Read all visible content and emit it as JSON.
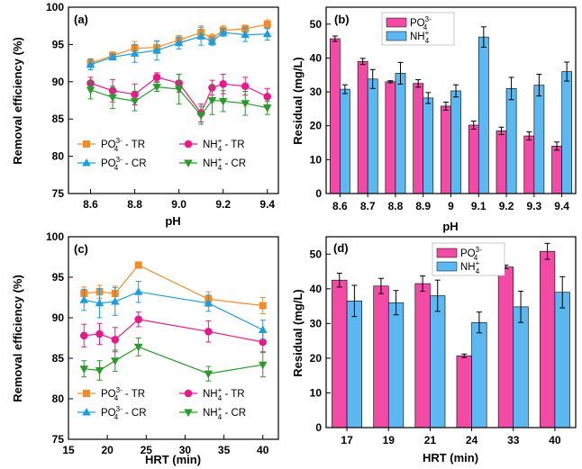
{
  "colors": {
    "po4": "#f28c28",
    "nh4": "#e8198b",
    "po4_cr": "#1a9ee0",
    "nh4_cr": "#2a9a2a",
    "bar_po4": "#f24aa5",
    "bar_nh4": "#5bb8f0"
  },
  "chart_data": [
    {
      "id": "a",
      "panel_label": "(a)",
      "type": "line",
      "xlabel": "pH",
      "ylabel": "Removal efficiency (%)",
      "xlim": [
        8.5,
        9.45
      ],
      "ylim": [
        75,
        100
      ],
      "xticks": [
        8.6,
        8.8,
        9.0,
        9.2,
        9.4
      ],
      "xtick_labels": [
        "8.6",
        "8.8",
        "9.0",
        "9.2",
        "9.4"
      ],
      "yticks": [
        75,
        80,
        85,
        90,
        95,
        100
      ],
      "x": [
        8.6,
        8.7,
        8.8,
        8.9,
        9.0,
        9.1,
        9.15,
        9.2,
        9.3,
        9.4
      ],
      "legend_position": "bottom-left",
      "series": [
        {
          "name": "PO43- - TR",
          "label_main": "PO",
          "label_sub": "4",
          "label_sup": "3-",
          "label_tail": " - TR",
          "color_key": "po4",
          "marker": "square",
          "values": [
            92.5,
            93.5,
            94.5,
            94.6,
            95.6,
            96.6,
            95.8,
            96.9,
            97.1,
            97.7
          ],
          "errors": [
            0.6,
            0.5,
            0.9,
            0.8,
            0.6,
            0.9,
            0.6,
            0.6,
            0.5,
            0.6
          ]
        },
        {
          "name": "NH4+ - TR",
          "label_main": "NH",
          "label_sub": "4",
          "label_sup": "+",
          "label_tail": " - TR",
          "color_key": "nh4",
          "marker": "circle",
          "values": [
            89.8,
            88.8,
            88.3,
            90.6,
            89.8,
            85.8,
            89.2,
            89.7,
            89.4,
            88.0
          ],
          "errors": [
            0.8,
            1.5,
            1.4,
            0.6,
            1.2,
            1.2,
            1.0,
            1.3,
            1.2,
            1.1
          ]
        },
        {
          "name": "PO43- - CR",
          "label_main": "PO",
          "label_sub": "4",
          "label_sup": "3-",
          "label_tail": " - CR",
          "color_key": "po4_cr",
          "marker": "triangle-up",
          "values": [
            92.3,
            93.3,
            93.8,
            94.2,
            95.2,
            96.1,
            95.4,
            96.6,
            96.3,
            96.4
          ],
          "errors": [
            0.7,
            0.4,
            1.2,
            1.3,
            0.8,
            1.2,
            0.5,
            0.5,
            0.9,
            0.8
          ]
        },
        {
          "name": "NH4+ - CR",
          "label_main": "NH",
          "label_sub": "4",
          "label_sup": "+",
          "label_tail": " - CR",
          "color_key": "nh4_cr",
          "marker": "triangle-down",
          "values": [
            88.9,
            87.9,
            87.4,
            89.3,
            89.0,
            85.5,
            87.5,
            87.4,
            87.1,
            86.5
          ],
          "errors": [
            1.2,
            1.5,
            1.3,
            0.6,
            2.0,
            1.2,
            1.9,
            1.4,
            1.6,
            0.9
          ]
        }
      ]
    },
    {
      "id": "b",
      "panel_label": "(b)",
      "type": "bar",
      "xlabel": "pH",
      "ylabel": "Residual (mg/L)",
      "ylim": [
        0,
        55
      ],
      "yticks": [
        0,
        10,
        20,
        30,
        40,
        50
      ],
      "categories": [
        "8.6",
        "8.7",
        "8.8",
        "8.9",
        "9",
        "9.1",
        "9.2",
        "9.3",
        "9.4"
      ],
      "legend_position": "top-center",
      "series": [
        {
          "name": "PO43-",
          "label_main": "PO",
          "label_sub": "4",
          "label_sup": "3-",
          "color_key": "bar_po4",
          "values": [
            45.7,
            39.0,
            33.0,
            32.5,
            25.8,
            20.2,
            18.5,
            17.0,
            14.0
          ],
          "errors": [
            0.8,
            0.9,
            0.3,
            1.1,
            1.2,
            1.2,
            1.1,
            1.2,
            1.2
          ]
        },
        {
          "name": "NH4+",
          "label_main": "NH",
          "label_sub": "4",
          "label_sup": "+",
          "color_key": "bar_nh4",
          "values": [
            30.8,
            33.8,
            35.5,
            28.2,
            30.3,
            46.2,
            31.0,
            32.0,
            36.0
          ],
          "errors": [
            1.3,
            2.8,
            3.2,
            1.6,
            1.8,
            3.0,
            3.3,
            3.2,
            2.8
          ]
        }
      ]
    },
    {
      "id": "c",
      "panel_label": "(c)",
      "type": "line",
      "xlabel": "HRT (min)",
      "ylabel": "Removal efficiency (%)",
      "xlim": [
        15,
        42
      ],
      "ylim": [
        75,
        100
      ],
      "xticks": [
        15,
        20,
        25,
        30,
        35,
        40
      ],
      "xtick_labels": [
        "15",
        "20",
        "25",
        "30",
        "35",
        "40"
      ],
      "yticks": [
        75,
        80,
        85,
        90,
        95,
        100
      ],
      "x": [
        17,
        19,
        21,
        24,
        33,
        40
      ],
      "legend_position": "bottom",
      "series": [
        {
          "name": "PO43- - TR",
          "label_main": "PO",
          "label_sub": "4",
          "label_sup": "3-",
          "label_tail": " - TR",
          "color_key": "po4",
          "marker": "square",
          "values": [
            93.0,
            93.2,
            93.0,
            96.5,
            92.3,
            91.5
          ],
          "errors": [
            0.8,
            0.8,
            0.9,
            0.4,
            0.9,
            1.0
          ]
        },
        {
          "name": "NH4+ - TR",
          "label_main": "NH",
          "label_sub": "4",
          "label_sup": "+",
          "label_tail": " - TR",
          "color_key": "nh4",
          "marker": "circle",
          "values": [
            87.8,
            88.0,
            87.3,
            89.8,
            88.3,
            87.0
          ],
          "errors": [
            1.4,
            1.3,
            1.5,
            0.9,
            1.3,
            1.2
          ]
        },
        {
          "name": "PO43- - CR",
          "label_main": "PO",
          "label_sub": "4",
          "label_sup": "3-",
          "label_tail": " - CR",
          "color_key": "po4_cr",
          "marker": "triangle-up",
          "values": [
            92.2,
            91.8,
            92.0,
            93.2,
            91.8,
            88.5
          ],
          "errors": [
            1.3,
            1.8,
            1.7,
            1.3,
            1.0,
            1.2
          ]
        },
        {
          "name": "NH4+ - CR",
          "label_main": "NH",
          "label_sub": "4",
          "label_sup": "+",
          "label_tail": " - CR",
          "color_key": "nh4_cr",
          "marker": "triangle-down",
          "values": [
            83.7,
            83.5,
            84.7,
            86.4,
            83.1,
            84.2
          ],
          "errors": [
            1.0,
            1.2,
            1.3,
            1.1,
            0.9,
            1.5
          ]
        }
      ]
    },
    {
      "id": "d",
      "panel_label": "(d)",
      "type": "bar",
      "xlabel": "HRT (min)",
      "ylabel": "Residual (mg/L)",
      "ylim": [
        0,
        55
      ],
      "yticks": [
        0,
        10,
        20,
        30,
        40,
        50
      ],
      "categories": [
        "17",
        "19",
        "21",
        "24",
        "33",
        "40"
      ],
      "legend_position": "top-left",
      "series": [
        {
          "name": "PO43-",
          "label_main": "PO",
          "label_sub": "4",
          "label_sup": "3-",
          "color_key": "bar_po4",
          "values": [
            42.5,
            40.8,
            41.5,
            20.7,
            46.3,
            50.8
          ],
          "errors": [
            2.0,
            2.2,
            2.2,
            0.5,
            0.5,
            2.3
          ]
        },
        {
          "name": "NH4+",
          "label_main": "NH",
          "label_sub": "4",
          "label_sup": "+",
          "color_key": "bar_nh4",
          "values": [
            36.5,
            36.0,
            38.0,
            30.3,
            34.8,
            39.0
          ],
          "errors": [
            4.5,
            3.5,
            4.5,
            3.0,
            4.5,
            4.5
          ]
        }
      ]
    }
  ]
}
